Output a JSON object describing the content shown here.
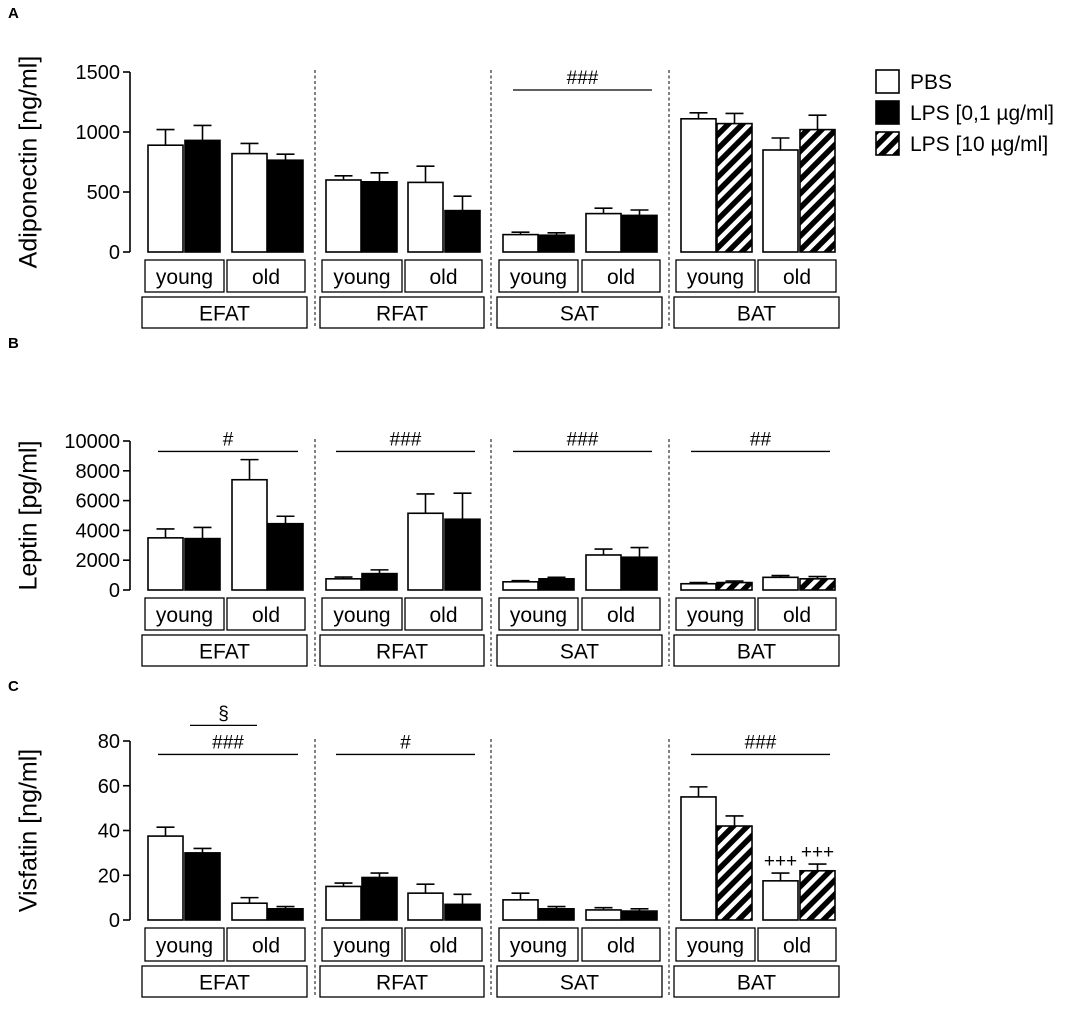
{
  "legend": {
    "entries": [
      {
        "label": "PBS",
        "style": "open"
      },
      {
        "label": "LPS [0,1 µg/ml]",
        "style": "black"
      },
      {
        "label": "LPS [10 µg/ml]",
        "style": "hatched"
      }
    ]
  },
  "colors": {
    "bar_stroke": "#000000",
    "open_fill": "#ffffff",
    "solid_fill": "#000000"
  },
  "chart_data": [
    {
      "panel": "A",
      "type": "bar",
      "ylabel": "Adiponectin [ng/ml]",
      "ylim": [
        0,
        1500
      ],
      "yticks": [
        "0",
        "500",
        "1000",
        "1500"
      ],
      "age_labels": [
        "young",
        "old"
      ],
      "tissues": [
        {
          "name": "EFAT",
          "treatment": "LPS [0,1 µg/ml]",
          "young": {
            "pbs": [
              890,
              130
            ],
            "lps": [
              930,
              125
            ]
          },
          "old": {
            "pbs": [
              820,
              85
            ],
            "lps": [
              765,
              50
            ]
          },
          "sig": []
        },
        {
          "name": "RFAT",
          "treatment": "LPS [0,1 µg/ml]",
          "young": {
            "pbs": [
              600,
              35
            ],
            "lps": [
              585,
              75
            ]
          },
          "old": {
            "pbs": [
              580,
              135
            ],
            "lps": [
              345,
              120
            ]
          },
          "sig": []
        },
        {
          "name": "SAT",
          "treatment": "LPS [0,1 µg/ml]",
          "young": {
            "pbs": [
              145,
              20
            ],
            "lps": [
              140,
              20
            ]
          },
          "old": {
            "pbs": [
              320,
              45
            ],
            "lps": [
              305,
              45
            ]
          },
          "sig": [
            {
              "text": "###",
              "level": 1350,
              "span": "all"
            }
          ]
        },
        {
          "name": "BAT",
          "treatment": "LPS [10 µg/ml]",
          "young": {
            "pbs": [
              1110,
              50
            ],
            "lps": [
              1070,
              85
            ]
          },
          "old": {
            "pbs": [
              850,
              100
            ],
            "lps": [
              1020,
              120
            ]
          },
          "sig": []
        }
      ]
    },
    {
      "panel": "B",
      "type": "bar",
      "ylabel": "Leptin [pg/ml]",
      "ylim": [
        0,
        10000
      ],
      "yticks": [
        "0",
        "2000",
        "4000",
        "6000",
        "8000",
        "10000"
      ],
      "age_labels": [
        "young",
        "old"
      ],
      "tissues": [
        {
          "name": "EFAT",
          "treatment": "LPS [0,1 µg/ml]",
          "young": {
            "pbs": [
              3500,
              600
            ],
            "lps": [
              3450,
              750
            ]
          },
          "old": {
            "pbs": [
              7400,
              1350
            ],
            "lps": [
              4450,
              500
            ]
          },
          "sig": [
            {
              "text": "#",
              "level": 9300,
              "span": "all"
            }
          ]
        },
        {
          "name": "RFAT",
          "treatment": "LPS [0,1 µg/ml]",
          "young": {
            "pbs": [
              750,
              120
            ],
            "lps": [
              1100,
              250
            ]
          },
          "old": {
            "pbs": [
              5150,
              1300
            ],
            "lps": [
              4750,
              1750
            ]
          },
          "sig": [
            {
              "text": "###",
              "level": 9300,
              "span": "all"
            }
          ]
        },
        {
          "name": "SAT",
          "treatment": "LPS [0,1 µg/ml]",
          "young": {
            "pbs": [
              550,
              80
            ],
            "lps": [
              750,
              100
            ]
          },
          "old": {
            "pbs": [
              2350,
              400
            ],
            "lps": [
              2200,
              650
            ]
          },
          "sig": [
            {
              "text": "###",
              "level": 9300,
              "span": "all"
            }
          ]
        },
        {
          "name": "BAT",
          "treatment": "LPS [10 µg/ml]",
          "young": {
            "pbs": [
              420,
              80
            ],
            "lps": [
              500,
              100
            ]
          },
          "old": {
            "pbs": [
              850,
              120
            ],
            "lps": [
              750,
              150
            ]
          },
          "sig": [
            {
              "text": "##",
              "level": 9300,
              "span": "all"
            }
          ]
        }
      ]
    },
    {
      "panel": "C",
      "type": "bar",
      "ylabel": "Visfatin [ng/ml]",
      "ylim": [
        0,
        80
      ],
      "yticks": [
        "0",
        "20",
        "40",
        "60",
        "80"
      ],
      "age_labels": [
        "young",
        "old"
      ],
      "tissues": [
        {
          "name": "EFAT",
          "treatment": "LPS [0,1 µg/ml]",
          "young": {
            "pbs": [
              37.5,
              4
            ],
            "lps": [
              30,
              2
            ]
          },
          "old": {
            "pbs": [
              7.5,
              2.5
            ],
            "lps": [
              5,
              1
            ]
          },
          "sig": [
            {
              "text": "###",
              "level": 74,
              "span": "all"
            },
            {
              "text": "§",
              "level": 87,
              "span": "inner"
            }
          ]
        },
        {
          "name": "RFAT",
          "treatment": "LPS [0,1 µg/ml]",
          "young": {
            "pbs": [
              15,
              1.5
            ],
            "lps": [
              19,
              2
            ]
          },
          "old": {
            "pbs": [
              12,
              4
            ],
            "lps": [
              7,
              4.5
            ]
          },
          "sig": [
            {
              "text": "#",
              "level": 74,
              "span": "all"
            }
          ]
        },
        {
          "name": "SAT",
          "treatment": "LPS [0,1 µg/ml]",
          "young": {
            "pbs": [
              9,
              3
            ],
            "lps": [
              5,
              1
            ]
          },
          "old": {
            "pbs": [
              4.5,
              1
            ],
            "lps": [
              4,
              1
            ]
          },
          "sig": []
        },
        {
          "name": "BAT",
          "treatment": "LPS [10 µg/ml]",
          "young": {
            "pbs": [
              55,
              4.5
            ],
            "lps": [
              42,
              4.5
            ]
          },
          "old": {
            "pbs": [
              17.5,
              3.5
            ],
            "lps": [
              22,
              3
            ]
          },
          "sig": [
            {
              "text": "###",
              "level": 74,
              "span": "all"
            }
          ],
          "bar_marks": {
            "old_pbs": "+++",
            "old_lps": "+++"
          }
        }
      ]
    }
  ]
}
